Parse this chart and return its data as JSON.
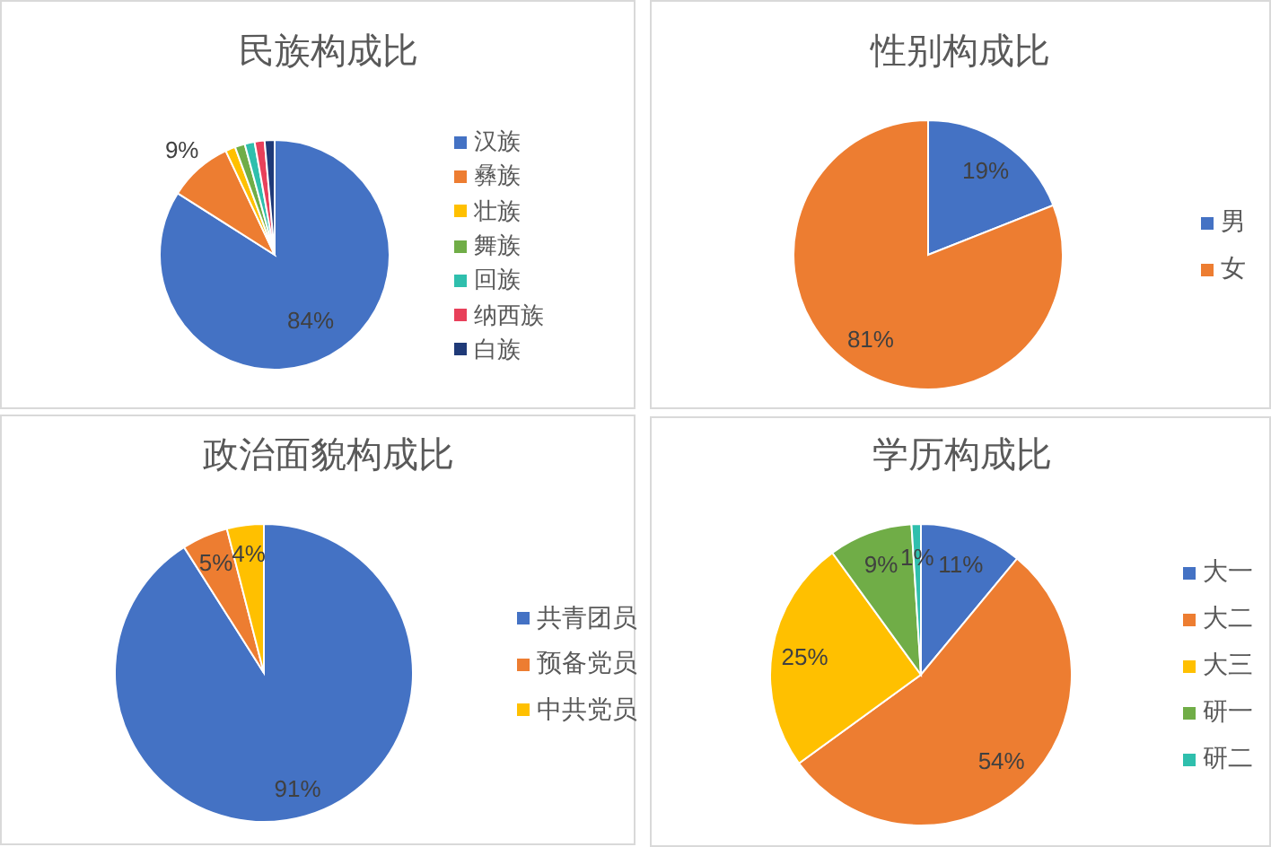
{
  "chart_data": [
    {
      "type": "pie",
      "title": "民族构成比",
      "categories": [
        "汉族",
        "彝族",
        "壮族",
        "舞族",
        "回族",
        "纳西族",
        "白族"
      ],
      "values": [
        84,
        9,
        1.4,
        1.4,
        1.4,
        1.4,
        1.4
      ],
      "colors": [
        "#4472c4",
        "#ed7d31",
        "#ffc000",
        "#70ad47",
        "#2fbfad",
        "#e8405a",
        "#1f3a78"
      ],
      "value_labels": [
        "84%",
        "9%",
        null,
        null,
        null,
        null,
        null
      ],
      "legend": "right"
    },
    {
      "type": "pie",
      "title": "性别构成比",
      "categories": [
        "男",
        "女"
      ],
      "values": [
        19,
        81
      ],
      "colors": [
        "#4472c4",
        "#ed7d31"
      ],
      "value_labels": [
        "19%",
        "81%"
      ],
      "legend": "right"
    },
    {
      "type": "pie",
      "title": "政治面貌构成比",
      "categories": [
        "共青团员",
        "预备党员",
        "中共党员"
      ],
      "values": [
        91,
        5,
        4
      ],
      "colors": [
        "#4472c4",
        "#ed7d31",
        "#ffc000"
      ],
      "value_labels": [
        "91%",
        "5%",
        "4%"
      ],
      "legend": "right"
    },
    {
      "type": "pie",
      "title": "学历构成比",
      "categories": [
        "大一",
        "大二",
        "大三",
        "研一",
        "研二"
      ],
      "values": [
        11,
        54,
        25,
        9,
        1
      ],
      "colors": [
        "#4472c4",
        "#ed7d31",
        "#ffc000",
        "#70ad47",
        "#2fbfad"
      ],
      "value_labels": [
        "11%",
        "54%",
        "25%",
        "9%",
        "1%"
      ],
      "legend": "right"
    }
  ]
}
